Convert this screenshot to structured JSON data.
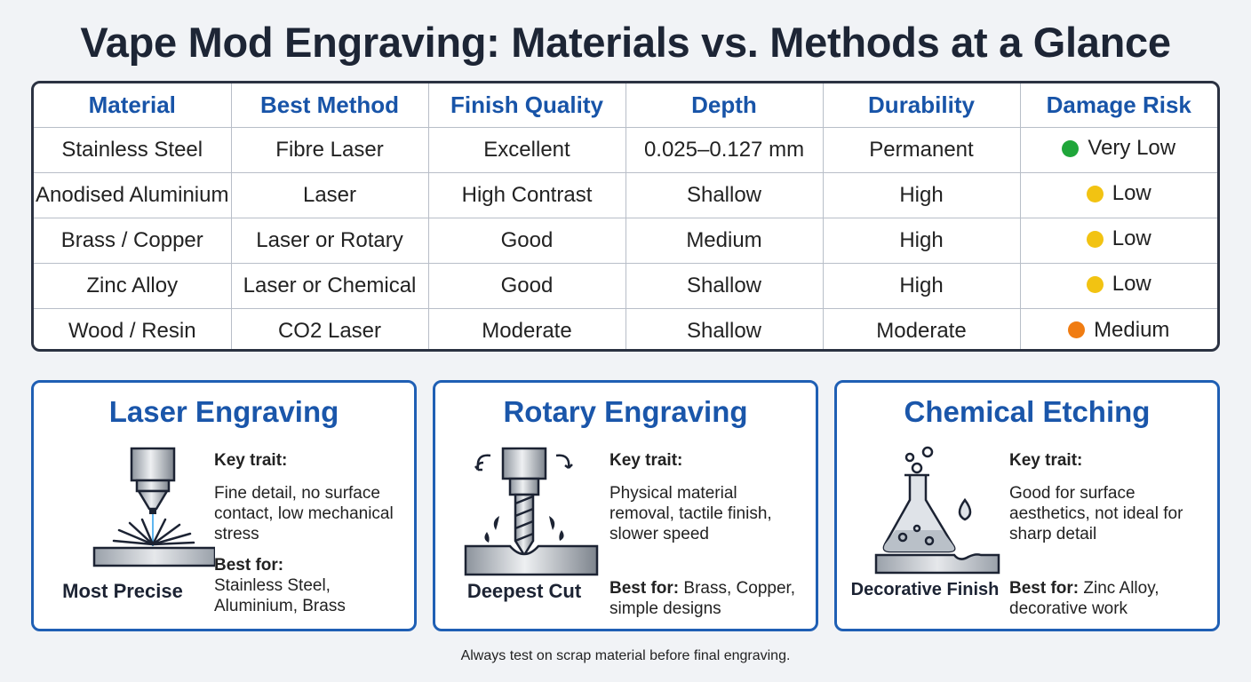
{
  "title": "Vape Mod Engraving: Materials vs. Methods at a Glance",
  "table": {
    "headers": [
      "Material",
      "Best Method",
      "Finish Quality",
      "Depth",
      "Durability",
      "Damage Risk"
    ],
    "rows": [
      {
        "material": "Stainless Steel",
        "method": "Fibre Laser",
        "finish": "Excellent",
        "depth": "0.025–0.127 mm",
        "durability": "Permanent",
        "risk": "Very Low",
        "risk_color": "#1fa63a"
      },
      {
        "material": "Anodised Aluminium",
        "method": "Laser",
        "finish": "High Contrast",
        "depth": "Shallow",
        "durability": "High",
        "risk": "Low",
        "risk_color": "#f2c312"
      },
      {
        "material": "Brass / Copper",
        "method": "Laser or Rotary",
        "finish": "Good",
        "depth": "Medium",
        "durability": "High",
        "risk": "Low",
        "risk_color": "#f2c312"
      },
      {
        "material": "Zinc Alloy",
        "method": "Laser or Chemical",
        "finish": "Good",
        "depth": "Shallow",
        "durability": "High",
        "risk": "Low",
        "risk_color": "#f2c312"
      },
      {
        "material": "Wood / Resin",
        "method": "CO2 Laser",
        "finish": "Moderate",
        "depth": "Shallow",
        "durability": "Moderate",
        "risk": "Medium",
        "risk_color": "#f07c12"
      }
    ]
  },
  "cards": [
    {
      "title": "Laser Engraving",
      "caption": "Most Precise",
      "key_label": "Key trait:",
      "key_text": "Fine detail, no surface contact, low mechanical stress",
      "best_label": "Best for:",
      "best_text": "Stainless Steel, Aluminium, Brass",
      "icon": "laser-icon"
    },
    {
      "title": "Rotary Engraving",
      "caption": "Deepest Cut",
      "key_label": "Key trait:",
      "key_text": "Physical material removal, tactile finish, slower speed",
      "best_label": "Best for:",
      "best_text": "Brass, Copper, simple designs",
      "icon": "drill-icon"
    },
    {
      "title": "Chemical Etching",
      "caption": "Decorative Finish",
      "key_label": "Key trait:",
      "key_text": "Good for surface aesthetics, not ideal for sharp detail",
      "best_label": "Best for:",
      "best_text": "Zinc Alloy, decorative work",
      "icon": "flask-icon"
    }
  ],
  "footer": "Always test on scrap material before final engraving."
}
